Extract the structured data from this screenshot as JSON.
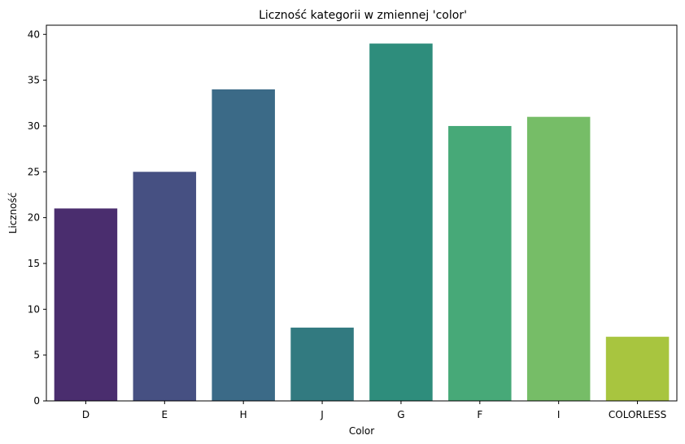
{
  "chart_data": {
    "type": "bar",
    "title": "Liczność kategorii w zmiennej 'color'",
    "xlabel": "Color",
    "ylabel": "Liczność",
    "categories": [
      "D",
      "E",
      "H",
      "J",
      "G",
      "F",
      "I",
      "COLORLESS"
    ],
    "values": [
      21,
      25,
      34,
      8,
      39,
      30,
      31,
      7
    ],
    "colors": [
      "#4a2d6e",
      "#465082",
      "#3b6a87",
      "#327a80",
      "#2e8d7c",
      "#47a978",
      "#76bd67",
      "#a8c53f"
    ],
    "ylim": [
      0,
      41
    ],
    "yticks": [
      0,
      5,
      10,
      15,
      20,
      25,
      30,
      35,
      40
    ],
    "grid": false,
    "legend": "none"
  }
}
